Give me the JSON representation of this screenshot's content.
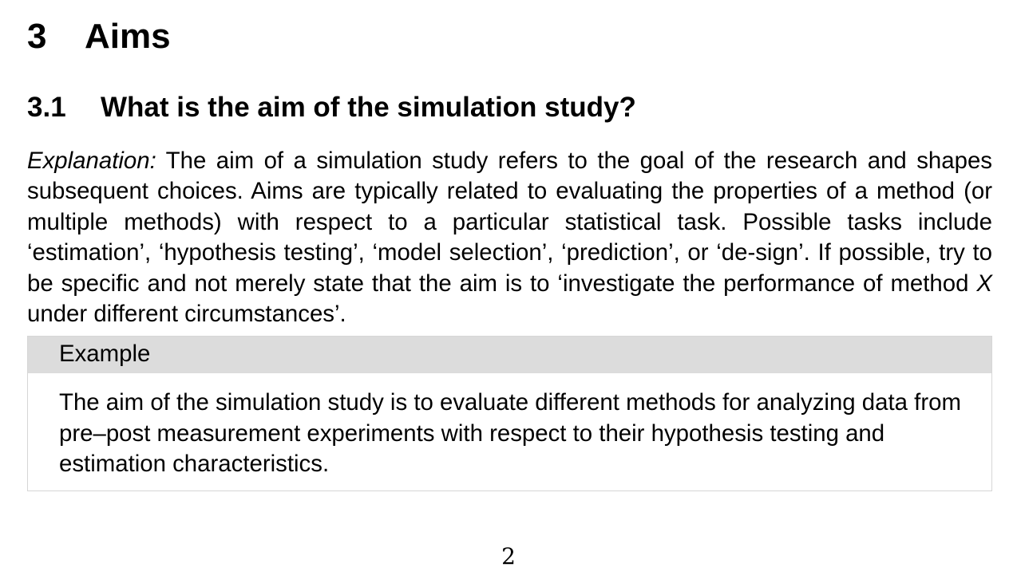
{
  "section": {
    "number": "3",
    "title": "Aims"
  },
  "subsection": {
    "number": "3.1",
    "title": "What is the aim of the simulation study?"
  },
  "explanation": {
    "label": "Explanation:",
    "text_1": " The aim of a simulation study refers to the goal of the research and shapes subsequent choices. Aims are typically related to evaluating the properties of a method (or multiple methods) with respect to a particular statistical task. Possible tasks include ‘estimation’, ‘hypothesis testing’, ‘model selection’, ‘prediction’, or ‘de-sign’. If possible, try to be specific and not merely state that the aim is to ‘investigate the performance of method ",
    "method_var": "X",
    "text_2": " under different circumstances’."
  },
  "example": {
    "header": "Example",
    "text": "The aim of the simulation study is to evaluate different methods for analyzing data from pre–post measurement experiments with respect to their hypothesis testing and estimation characteristics."
  },
  "page_number": "2"
}
